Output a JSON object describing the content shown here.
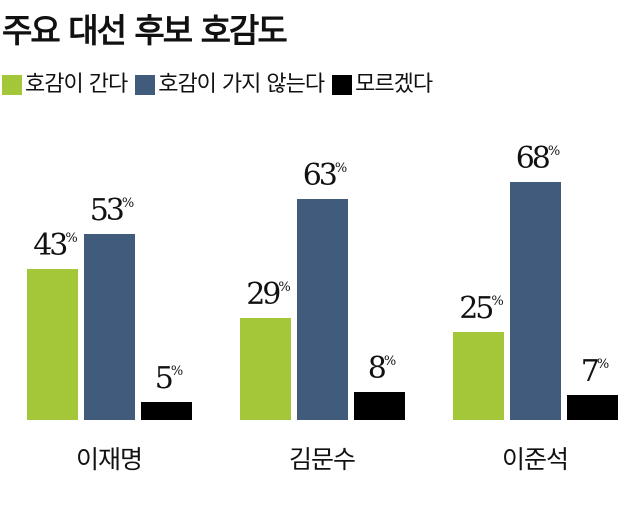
{
  "title": "주요 대선 후보 호감도",
  "legend": [
    {
      "label": "호감이 간다",
      "color": "#a4c639"
    },
    {
      "label": "호감이 가지 않는다",
      "color": "#405b7b"
    },
    {
      "label": "모르겠다",
      "color": "#000000"
    }
  ],
  "categories": [
    "이재명",
    "김문수",
    "이준석"
  ],
  "value_suffix": "%",
  "chart_data": {
    "type": "bar",
    "title": "주요 대선 후보 호감도",
    "xlabel": "",
    "ylabel": "",
    "categories": [
      "이재명",
      "김문수",
      "이준석"
    ],
    "series": [
      {
        "name": "호감이 간다",
        "color": "#a4c639",
        "values": [
          43,
          29,
          25
        ]
      },
      {
        "name": "호감이 가지 않는다",
        "color": "#405b7b",
        "values": [
          53,
          63,
          68
        ]
      },
      {
        "name": "모르겠다",
        "color": "#000000",
        "values": [
          5,
          8,
          7
        ]
      }
    ],
    "unit": "%",
    "grid": false,
    "legend_position": "top-left",
    "ylim": [
      0,
      70
    ]
  }
}
